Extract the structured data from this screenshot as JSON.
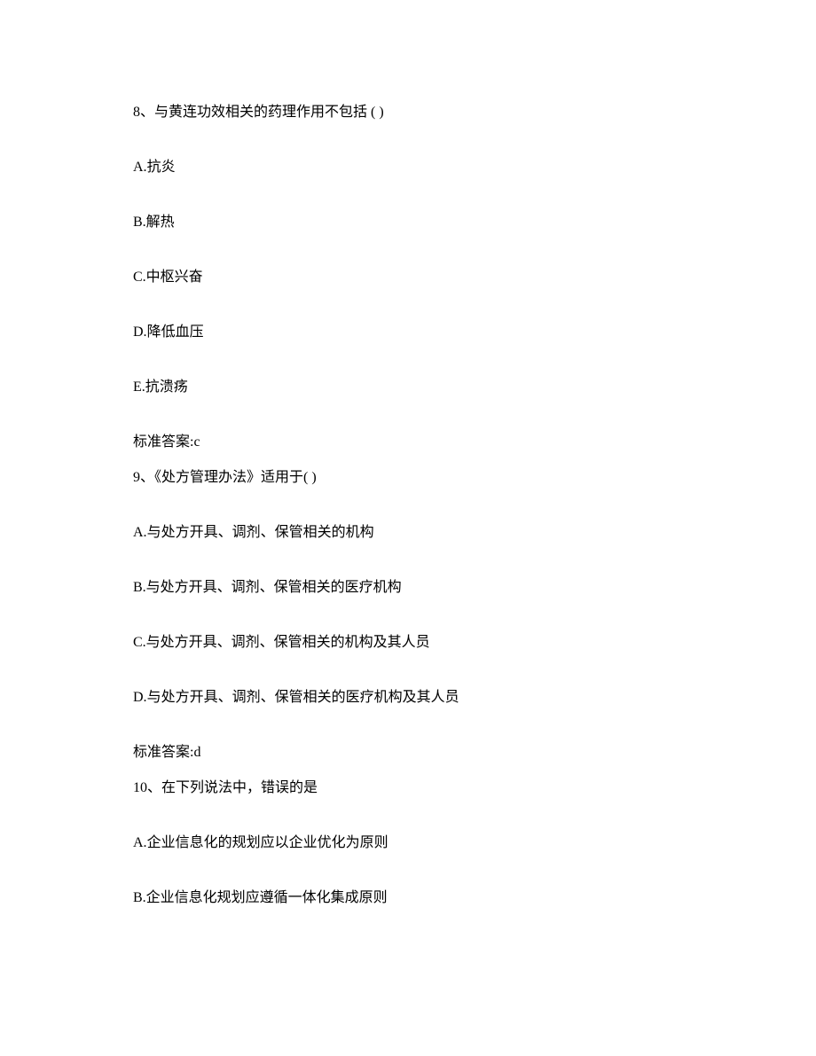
{
  "questions": [
    {
      "number": "8、",
      "stem": "与黄连功效相关的药理作用不包括 ( )",
      "options": [
        {
          "label": "A.",
          "text": "抗炎"
        },
        {
          "label": "B.",
          "text": "解热"
        },
        {
          "label": "C.",
          "text": "中枢兴奋"
        },
        {
          "label": "D.",
          "text": "降低血压"
        },
        {
          "label": "E.",
          "text": "抗溃疡"
        }
      ],
      "answer_label": "标准答案:",
      "answer_value": "c"
    },
    {
      "number": "9、",
      "stem": "《处方管理办法》适用于( )",
      "options": [
        {
          "label": "A.",
          "text": "与处方开具、调剂、保管相关的机构"
        },
        {
          "label": "B.",
          "text": "与处方开具、调剂、保管相关的医疗机构"
        },
        {
          "label": "C.",
          "text": "与处方开具、调剂、保管相关的机构及其人员"
        },
        {
          "label": "D.",
          "text": "与处方开具、调剂、保管相关的医疗机构及其人员"
        }
      ],
      "answer_label": "标准答案:",
      "answer_value": "d"
    },
    {
      "number": "10、",
      "stem": "在下列说法中，错误的是",
      "options": [
        {
          "label": "A.",
          "text": "企业信息化的规划应以企业优化为原则"
        },
        {
          "label": "B.",
          "text": "企业信息化规划应遵循一体化集成原则"
        }
      ]
    }
  ]
}
